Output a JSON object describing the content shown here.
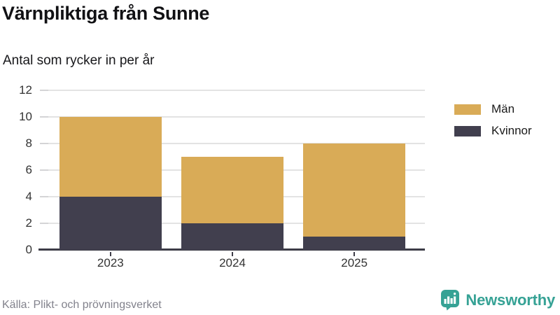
{
  "header": {
    "title": "Värnpliktiga från Sunne",
    "subtitle": "Antal som rycker in per år"
  },
  "legend": {
    "items": [
      {
        "label": "Män",
        "color": "#d9ab57"
      },
      {
        "label": "Kvinnor",
        "color": "#413f4e"
      }
    ]
  },
  "footer": {
    "source": "Källa: Plikt- och prövningsverket",
    "brand": {
      "name": "Newsworthy",
      "color": "#36a295"
    }
  },
  "chart_data": {
    "type": "bar",
    "stacked": true,
    "title": "Värnpliktiga från Sunne",
    "subtitle": "Antal som rycker in per år",
    "categories": [
      "2023",
      "2024",
      "2025"
    ],
    "series": [
      {
        "name": "Män",
        "color": "#d9ab57",
        "values": [
          6,
          5,
          7
        ]
      },
      {
        "name": "Kvinnor",
        "color": "#413f4e",
        "values": [
          4,
          2,
          1
        ]
      }
    ],
    "stack_order_bottom_to_top": [
      "Kvinnor",
      "Män"
    ],
    "totals": [
      10,
      7,
      8
    ],
    "xlabel": "",
    "ylabel": "",
    "ylim": [
      0,
      12
    ],
    "yticks": [
      0,
      2,
      4,
      6,
      8,
      10,
      12
    ],
    "grid": true,
    "legend_position": "right"
  }
}
